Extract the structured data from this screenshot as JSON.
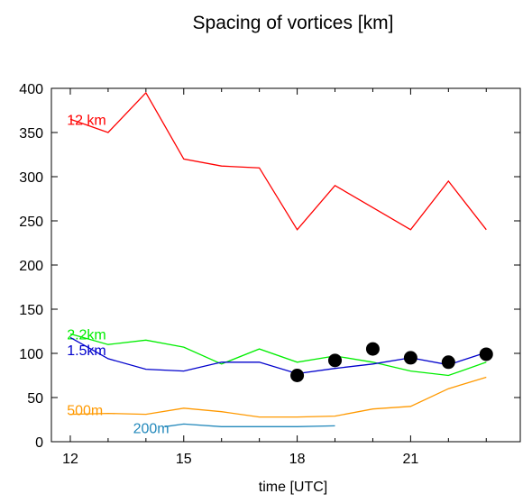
{
  "chart_data": {
    "type": "line",
    "title": "Spacing of vortices [km]",
    "xlabel": "time [UTC]",
    "ylabel": "",
    "xlim": [
      11.5,
      23.9
    ],
    "ylim": [
      0,
      400
    ],
    "x_ticks": [
      12,
      15,
      18,
      21
    ],
    "y_ticks": [
      0,
      50,
      100,
      150,
      200,
      250,
      300,
      350,
      400
    ],
    "grid": false,
    "series": [
      {
        "name": "12 km",
        "color": "#ff0000",
        "label_at": [
          11.6,
          365
        ],
        "points": [
          [
            12,
            365
          ],
          [
            13,
            350
          ],
          [
            14,
            395
          ],
          [
            15,
            320
          ],
          [
            16,
            312
          ],
          [
            17,
            310
          ],
          [
            18,
            240
          ],
          [
            19,
            290
          ],
          [
            20,
            265
          ],
          [
            21,
            240
          ],
          [
            22,
            295
          ],
          [
            23,
            240
          ]
        ]
      },
      {
        "name": "2.2km",
        "color": "#00ee00",
        "label_at": [
          11.6,
          122
        ],
        "points": [
          [
            12,
            122
          ],
          [
            13,
            110
          ],
          [
            14,
            115
          ],
          [
            15,
            107
          ],
          [
            16,
            88
          ],
          [
            17,
            105
          ],
          [
            18,
            90
          ],
          [
            19,
            97
          ],
          [
            20,
            90
          ],
          [
            21,
            80
          ],
          [
            22,
            75
          ],
          [
            23,
            90
          ]
        ]
      },
      {
        "name": "1.5km",
        "color": "#0000cc",
        "label_at": [
          11.6,
          104
        ],
        "points": [
          [
            12,
            118
          ],
          [
            13,
            94
          ],
          [
            14,
            82
          ],
          [
            15,
            80
          ],
          [
            16,
            90
          ],
          [
            17,
            90
          ],
          [
            18,
            77
          ],
          [
            19,
            83
          ],
          [
            20,
            88
          ],
          [
            21,
            95
          ],
          [
            22,
            87
          ],
          [
            23,
            101
          ]
        ]
      },
      {
        "name": "500m",
        "color": "#ff9900",
        "label_at": [
          11.6,
          36
        ],
        "points": [
          [
            12,
            31
          ],
          [
            13,
            32
          ],
          [
            14,
            31
          ],
          [
            15,
            38
          ],
          [
            16,
            34
          ],
          [
            17,
            28
          ],
          [
            18,
            28
          ],
          [
            19,
            29
          ],
          [
            20,
            37
          ],
          [
            21,
            40
          ],
          [
            22,
            60
          ],
          [
            23,
            73
          ]
        ]
      },
      {
        "name": "200m",
        "color": "#2288bb",
        "label_at": [
          13.35,
          16
        ],
        "points": [
          [
            14.5,
            17
          ],
          [
            15,
            20
          ],
          [
            16,
            17
          ],
          [
            17,
            17
          ],
          [
            18,
            17
          ],
          [
            19,
            18
          ]
        ]
      }
    ],
    "observations": {
      "color": "#000000",
      "points": [
        [
          18,
          75
        ],
        [
          19,
          92
        ],
        [
          20,
          105
        ],
        [
          21,
          95
        ],
        [
          22,
          90
        ],
        [
          23,
          99
        ]
      ]
    }
  }
}
